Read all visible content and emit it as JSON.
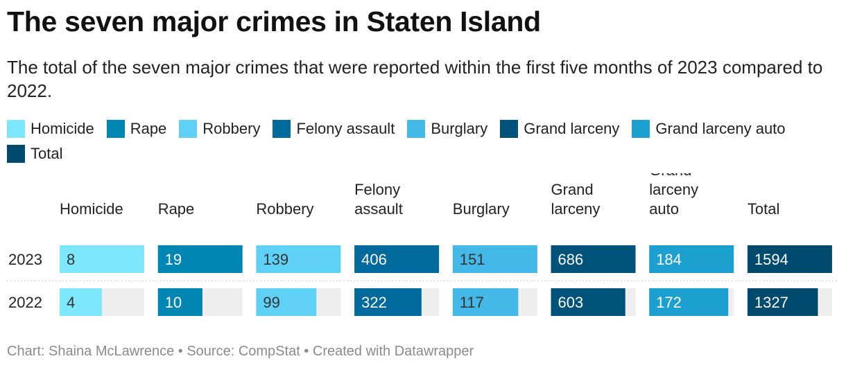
{
  "title": "The seven major crimes in Staten Island",
  "subtitle": "The total of the seven major crimes that were reported within the first five months of 2023 compared to 2022.",
  "footer": "Chart: Shaina McLawrence • Source: CompStat • Created with Datawrapper",
  "legend": [
    {
      "label": "Homicide",
      "color": "#7ee7fb"
    },
    {
      "label": "Rape",
      "color": "#0086b3"
    },
    {
      "label": "Robbery",
      "color": "#5ed1f5"
    },
    {
      "label": "Felony assault",
      "color": "#006a9c"
    },
    {
      "label": "Burglary",
      "color": "#44b8e6"
    },
    {
      "label": "Grand larceny",
      "color": "#00527a"
    },
    {
      "label": "Grand larceny auto",
      "color": "#1ba0d0"
    },
    {
      "label": "Total",
      "color": "#004a6e"
    }
  ],
  "chart_data": {
    "type": "bar",
    "categories": [
      "Homicide",
      "Rape",
      "Robbery",
      "Felony assault",
      "Burglary",
      "Grand larceny",
      "Grand larceny auto",
      "Total"
    ],
    "column_headers": [
      [
        "Homicide"
      ],
      [
        "Rape"
      ],
      [
        "Robbery"
      ],
      [
        "Felony",
        "assault"
      ],
      [
        "Burglary"
      ],
      [
        "Grand",
        "larceny"
      ],
      [
        "Grand",
        "larceny",
        "auto"
      ],
      [
        "Total"
      ]
    ],
    "series": [
      {
        "name": "2023",
        "values": [
          8,
          19,
          139,
          406,
          151,
          686,
          184,
          1594
        ]
      },
      {
        "name": "2022",
        "values": [
          4,
          10,
          99,
          322,
          117,
          603,
          172,
          1327
        ]
      }
    ],
    "colors": [
      "#7ee7fb",
      "#0086b3",
      "#5ed1f5",
      "#006a9c",
      "#44b8e6",
      "#00527a",
      "#1ba0d0",
      "#004a6e"
    ],
    "light_value_text_color": "#333333",
    "dark_value_text_color": "#ffffff",
    "track_color": "#efefef",
    "grid": false
  }
}
